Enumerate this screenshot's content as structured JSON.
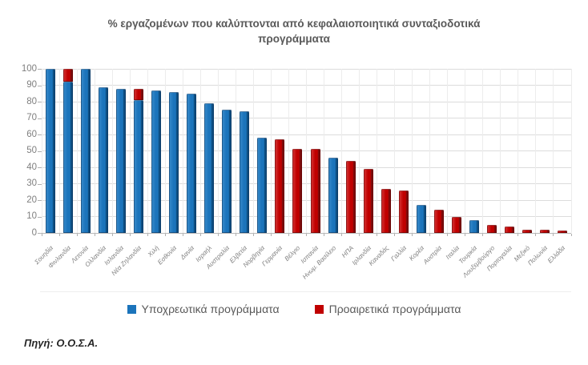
{
  "title": {
    "lines": [
      "% εργαζομένων που καλύπτονται από κεφαλαιοποιητικά  συνταξιοδοτικά",
      "προγράμματα"
    ]
  },
  "legend": {
    "items": [
      {
        "label": "Υποχρεωτικά προγράμματα",
        "color": "#1b74bb"
      },
      {
        "label": "Προαιρετικά προγράμματα",
        "color": "#c00000"
      }
    ]
  },
  "source": "Πηγή: Ο.Ο.Σ.Α.",
  "chart_data": {
    "type": "bar",
    "stacked": true,
    "title": "% εργαζομένων που καλύπτονται από κεφαλαιοποιητικά συνταξιοδοτικά προγράμματα",
    "xlabel": "",
    "ylabel": "",
    "ylim": [
      0,
      100
    ],
    "yticks": [
      0,
      10,
      20,
      30,
      40,
      50,
      60,
      70,
      80,
      90,
      100
    ],
    "grid": true,
    "legend_position": "bottom",
    "categories": [
      "Σουηδία",
      "Φινλανδία",
      "Λετονία",
      "Ολλανδία",
      "Ισλανδία",
      "Νέα Ζηλανδία",
      "Χιλή",
      "Εσθονία",
      "Δανία",
      "Ισραήλ",
      "Αυστραλία",
      "Ελβετία",
      "Νορβηγία",
      "Γερμανία",
      "Βέλγιο",
      "Ισπανία",
      "Ηνωμ. Βασίλειο",
      "ΗΠΑ",
      "Ιρλανδία",
      "Καναδάς",
      "Γαλλία",
      "Κορέα",
      "Αυστρία",
      "Ιταλία",
      "Τουρκία",
      "Λουξεμβούργο",
      "Πορτογαλία",
      "Μεξικό",
      "Πολωνία",
      "Ελλάδα"
    ],
    "series": [
      {
        "name": "Υποχρεωτικά προγράμματα",
        "color": "#1b74bb",
        "values": [
          100,
          92,
          100,
          89,
          88,
          81,
          87,
          86,
          85,
          79,
          75,
          74,
          58,
          0,
          0,
          0,
          46,
          0,
          0,
          0,
          0,
          17,
          0,
          0,
          8,
          0,
          0,
          0,
          0,
          0
        ]
      },
      {
        "name": "Προαιρετικά προγράμματα",
        "color": "#c00000",
        "values": [
          0,
          8,
          0,
          0,
          0,
          7,
          0,
          0,
          0,
          0,
          0,
          0,
          0,
          57,
          51,
          51,
          0,
          44,
          39,
          27,
          26,
          0,
          14,
          10,
          0,
          5,
          4,
          2,
          2,
          1.5
        ]
      }
    ]
  }
}
